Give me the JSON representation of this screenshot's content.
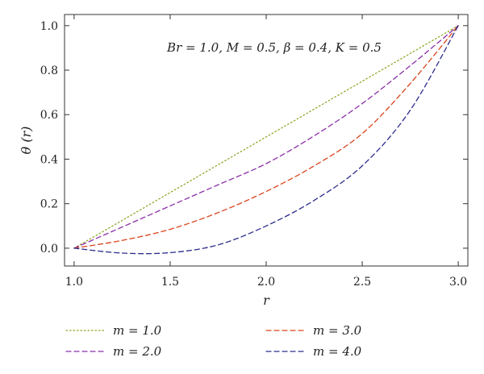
{
  "chart_data": {
    "type": "line",
    "title": "",
    "annotation": "Br = 1.0, M = 0.5, β = 0.4, K = 0.5",
    "xlabel": "r",
    "ylabel": "θ (r)",
    "xlim": [
      0.95,
      3.05
    ],
    "ylim": [
      -0.08,
      1.05
    ],
    "xticks": [
      1.0,
      1.5,
      2.0,
      2.5,
      3.0
    ],
    "yticks": [
      0.0,
      0.2,
      0.4,
      0.6,
      0.8,
      1.0
    ],
    "xtick_labels": [
      "1.0",
      "1.5",
      "2.0",
      "2.5",
      "3.0"
    ],
    "ytick_labels": [
      "0.0",
      "0.2",
      "0.4",
      "0.6",
      "0.8",
      "1.0"
    ],
    "grid": false,
    "legend_position": "bottom",
    "x": [
      1.0,
      1.25,
      1.5,
      1.75,
      2.0,
      2.25,
      2.5,
      2.75,
      3.0
    ],
    "series": [
      {
        "name": "m = 1.0",
        "color": "#8fa82a",
        "dash": "dotted",
        "values": [
          0.0,
          0.125,
          0.25,
          0.375,
          0.5,
          0.625,
          0.75,
          0.875,
          1.0
        ]
      },
      {
        "name": "m = 2.0",
        "color": "#8b2fa6",
        "dash": "dashed",
        "values": [
          0.0,
          0.095,
          0.19,
          0.285,
          0.38,
          0.505,
          0.65,
          0.82,
          1.0
        ]
      },
      {
        "name": "m = 3.0",
        "color": "#d9441c",
        "dash": "dashed",
        "values": [
          0.0,
          0.035,
          0.085,
          0.16,
          0.255,
          0.37,
          0.515,
          0.74,
          1.0
        ]
      },
      {
        "name": "m = 4.0",
        "color": "#2c2c8c",
        "dash": "dashed",
        "values": [
          0.0,
          -0.022,
          -0.02,
          0.015,
          0.1,
          0.215,
          0.37,
          0.62,
          1.0
        ]
      }
    ]
  }
}
